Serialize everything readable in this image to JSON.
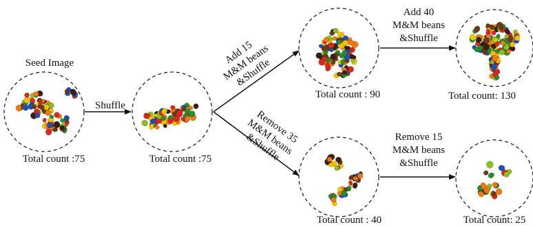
{
  "seed": {
    "title": "Seed Image",
    "count_label": "Total count :75",
    "count": 75
  },
  "shuffled": {
    "count_label": "Total count :75",
    "count": 75
  },
  "upper_mid": {
    "count_label": "Total count : 90",
    "count": 90
  },
  "upper_right": {
    "count_label": "Total count: 130",
    "count": 130
  },
  "lower_mid": {
    "count_label": "Total count : 40",
    "count": 40
  },
  "lower_right": {
    "count_label": "Total count: 25",
    "count": 25
  },
  "edges": {
    "shuffle": "Shuffle",
    "add15": [
      "Add 15",
      "M&M beans",
      "&Shuffle"
    ],
    "remove35": [
      "Remove 35",
      "M&M beans",
      "&Shuffle"
    ],
    "add40": [
      "Add 40",
      "M&M beans",
      "&Shuffle"
    ],
    "remove15": [
      "Remove 15",
      "M&M beans",
      "&Shuffle"
    ]
  },
  "bean_colors": [
    "#d62a1e",
    "#f2c200",
    "#2a8c2e",
    "#1f4fb0",
    "#6b3a1a",
    "#f07a12",
    "#3a1f10",
    "#8cbf26"
  ]
}
